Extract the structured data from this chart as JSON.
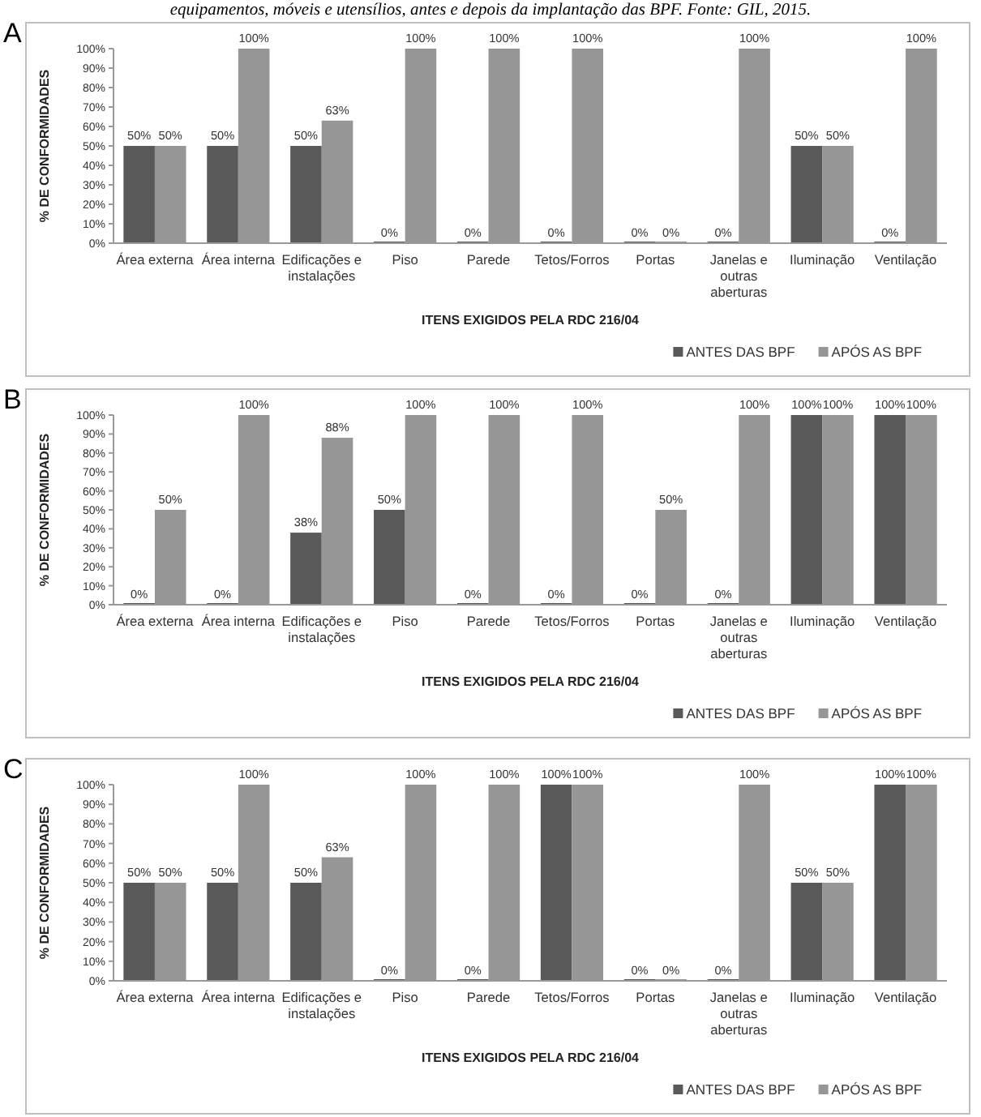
{
  "chart_data": [
    {
      "type": "bar",
      "title": "A",
      "annotations": [
        "equipamentos, móveis e utensílios, antes e depois da implantação das BPF. Fonte: GIL, 2015."
      ],
      "xlabel": "ITENS EXIGIDOS PELA RDC 216/04",
      "ylabel": "% DE CONFORMIDADES",
      "categories": [
        "Área externa",
        "Área interna",
        "Edificações e instalações",
        "Piso",
        "Parede",
        "Tetos/Forros",
        "Portas",
        "Janelas e outras aberturas",
        "Iluminação",
        "Ventilação"
      ],
      "series": [
        {
          "name": "ANTES DAS BPF",
          "color": "#595959",
          "values": [
            50,
            50,
            50,
            0,
            0,
            0,
            0,
            0,
            50,
            0
          ],
          "value_labels": [
            "50%",
            "50%",
            "50%",
            "0%",
            "0%",
            "0%",
            "0%",
            "0%",
            "50%",
            "0%"
          ]
        },
        {
          "name": "APÓS AS BPF",
          "color": "#969696",
          "values": [
            50,
            100,
            63,
            100,
            100,
            100,
            0,
            100,
            50,
            100
          ],
          "value_labels": [
            "50%",
            "100%",
            "63%",
            "100%",
            "100%",
            "100%",
            "0%",
            "100%",
            "50%",
            "100%"
          ]
        }
      ],
      "ylim": [
        0,
        100
      ],
      "yticks": [
        {
          "value": 0,
          "label": "0%"
        },
        {
          "value": 10,
          "label": "10%"
        },
        {
          "value": 20,
          "label": "20%"
        },
        {
          "value": 30,
          "label": "30%"
        },
        {
          "value": 40,
          "label": "40%"
        },
        {
          "value": 50,
          "label": "50%"
        },
        {
          "value": 60,
          "label": "60%"
        },
        {
          "value": 70,
          "label": "70%"
        },
        {
          "value": 80,
          "label": "80%"
        },
        {
          "value": 90,
          "label": "90%"
        },
        {
          "value": 100,
          "label": "100%"
        }
      ],
      "grid": false,
      "legend": "bottom right"
    },
    {
      "type": "bar",
      "title": "B",
      "xlabel": "ITENS EXIGIDOS PELA RDC 216/04",
      "ylabel": "% DE CONFORMIDADES",
      "categories": [
        "Área externa",
        "Área interna",
        "Edificações e instalações",
        "Piso",
        "Parede",
        "Tetos/Forros",
        "Portas",
        "Janelas e outras aberturas",
        "Iluminação",
        "Ventilação"
      ],
      "series": [
        {
          "name": "ANTES DAS BPF",
          "color": "#595959",
          "values": [
            0,
            0,
            38,
            50,
            0,
            0,
            0,
            0,
            100,
            100
          ],
          "value_labels": [
            "0%",
            "0%",
            "38%",
            "50%",
            "0%",
            "0%",
            "0%",
            "0%",
            "100%",
            "100%"
          ]
        },
        {
          "name": "APÓS AS BPF",
          "color": "#969696",
          "values": [
            50,
            100,
            88,
            100,
            100,
            100,
            50,
            100,
            100,
            100
          ],
          "value_labels": [
            "50%",
            "100%",
            "88%",
            "100%",
            "100%",
            "100%",
            "50%",
            "100%",
            "100%",
            "100%"
          ]
        }
      ],
      "ylim": [
        0,
        100
      ],
      "yticks": [
        {
          "value": 0,
          "label": "0%"
        },
        {
          "value": 10,
          "label": "10%"
        },
        {
          "value": 20,
          "label": "20%"
        },
        {
          "value": 30,
          "label": "30%"
        },
        {
          "value": 40,
          "label": "40%"
        },
        {
          "value": 50,
          "label": "50%"
        },
        {
          "value": 60,
          "label": "60%"
        },
        {
          "value": 70,
          "label": "70%"
        },
        {
          "value": 80,
          "label": "80%"
        },
        {
          "value": 90,
          "label": "90%"
        },
        {
          "value": 100,
          "label": "100%"
        }
      ],
      "grid": false,
      "legend": "bottom right"
    },
    {
      "type": "bar",
      "title": "C",
      "xlabel": "ITENS EXIGIDOS PELA RDC 216/04",
      "ylabel": "% DE CONFORMIDADES",
      "categories": [
        "Área externa",
        "Área interna",
        "Edificações e instalações",
        "Piso",
        "Parede",
        "Tetos/Forros",
        "Portas",
        "Janelas e outras aberturas",
        "Iluminação",
        "Ventilação"
      ],
      "series": [
        {
          "name": "ANTES DAS BPF",
          "color": "#595959",
          "values": [
            50,
            50,
            50,
            0,
            0,
            100,
            0,
            0,
            50,
            100
          ],
          "value_labels": [
            "50%",
            "50%",
            "50%",
            "0%",
            "0%",
            "100%",
            "0%",
            "0%",
            "50%",
            "100%"
          ]
        },
        {
          "name": "APÓS AS BPF",
          "color": "#969696",
          "values": [
            50,
            100,
            63,
            100,
            100,
            100,
            0,
            100,
            50,
            100
          ],
          "value_labels": [
            "50%",
            "100%",
            "63%",
            "100%",
            "100%",
            "100%",
            "0%",
            "100%",
            "50%",
            "100%"
          ]
        }
      ],
      "ylim": [
        0,
        100
      ],
      "yticks": [
        {
          "value": 0,
          "label": "0%"
        },
        {
          "value": 10,
          "label": "10%"
        },
        {
          "value": 20,
          "label": "20%"
        },
        {
          "value": 30,
          "label": "30%"
        },
        {
          "value": 40,
          "label": "40%"
        },
        {
          "value": 50,
          "label": "50%"
        },
        {
          "value": 60,
          "label": "60%"
        },
        {
          "value": 70,
          "label": "70%"
        },
        {
          "value": 80,
          "label": "80%"
        },
        {
          "value": 90,
          "label": "90%"
        },
        {
          "value": 100,
          "label": "100%"
        }
      ],
      "grid": false,
      "legend": "bottom right"
    }
  ]
}
